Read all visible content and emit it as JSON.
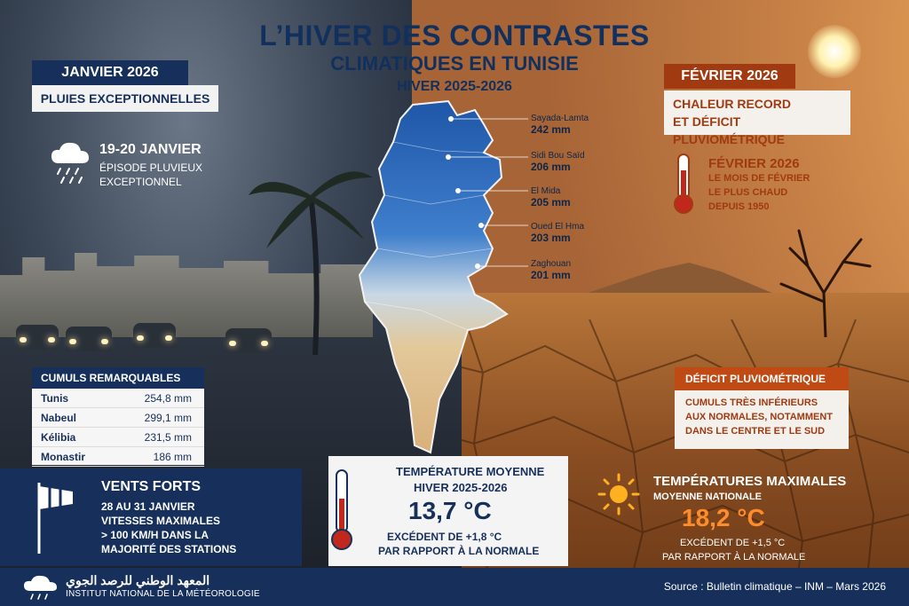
{
  "title": {
    "line1": "L’HIVER DES CONTRASTES",
    "line2": "CLIMATIQUES EN TUNISIE",
    "line3": "HIVER 2025-2026"
  },
  "january": {
    "tag": "JANVIER 2026",
    "subtitle": "PLUIES EXCEPTIONNELLES",
    "episode_date": "19-20 JANVIER",
    "episode_line1": "ÉPISODE PLUVIEUX",
    "episode_line2": "EXCEPTIONNEL",
    "cumuls_title": "CUMULS REMARQUABLES",
    "cumuls": [
      {
        "name": "Tunis",
        "value": "254,8 mm"
      },
      {
        "name": "Nabeul",
        "value": "299,1 mm"
      },
      {
        "name": "Kélibia",
        "value": "231,5 mm"
      },
      {
        "name": "Monastir",
        "value": "186 mm"
      }
    ]
  },
  "winds": {
    "title": "VENTS FORTS",
    "line1": "28 AU 31 JANVIER",
    "line2": "VITESSES MAXIMALES",
    "line3": "> 100 KM/H DANS LA",
    "line4": "MAJORITÉ DES STATIONS"
  },
  "map_stations": [
    {
      "name": "Sayada-Lamta",
      "value": "242 mm"
    },
    {
      "name": "Sidi Bou Saïd",
      "value": "206 mm"
    },
    {
      "name": "El Mida",
      "value": "205 mm"
    },
    {
      "name": "Oued El Hma",
      "value": "203 mm"
    },
    {
      "name": "Zaghouan",
      "value": "201 mm"
    }
  ],
  "temp_moyenne": {
    "label1": "TEMPÉRATURE MOYENNE",
    "label2": "HIVER 2025-2026",
    "value": "13,7 °C",
    "exc1": "EXCÉDENT DE +1,8 °C",
    "exc2": "PAR RAPPORT À LA NORMALE"
  },
  "february": {
    "tag": "FÉVRIER 2026",
    "subtitle1": "CHALEUR RECORD",
    "subtitle2": "ET DÉFICIT PLUVIOMÉTRIQUE",
    "box_title": "FÉVRIER 2026",
    "box1": "LE MOIS DE FÉVRIER",
    "box2": "LE PLUS CHAUD",
    "box3": "DEPUIS 1950"
  },
  "deficit": {
    "title": "DÉFICIT PLUVIOMÉTRIQUE",
    "l1": "CUMULS TRÈS INFÉRIEURS",
    "l2": "AUX NORMALES, NOTAMMENT",
    "l3": "DANS LE CENTRE ET LE SUD"
  },
  "tmax": {
    "title": "TEMPÉRATURES MAXIMALES",
    "sub": "MOYENNE NATIONALE",
    "value": "18,2 °C",
    "exc1": "EXCÉDENT DE +1,5 °C",
    "exc2": "PAR RAPPORT À LA NORMALE"
  },
  "footer": {
    "arabic": "المعهد الوطني للرصد الجوي",
    "french": "INSTITUT NATIONAL DE LA MÉTÉOROLOGIE",
    "source": "Source : Bulletin climatique – INM – Mars 2026"
  },
  "colors": {
    "navy": "#16305b",
    "rust": "#a13a10",
    "orange": "#ff8c2b"
  }
}
